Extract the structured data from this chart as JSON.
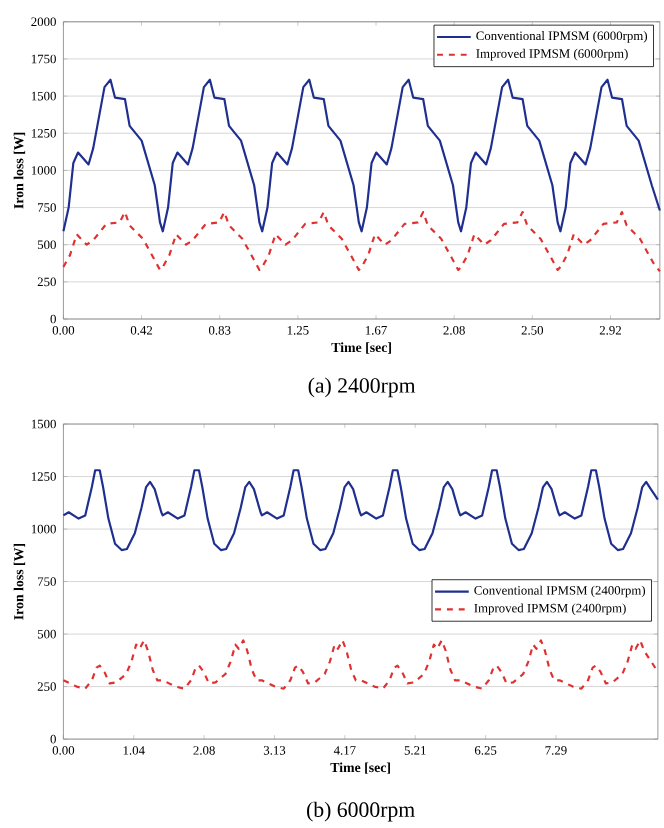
{
  "chart_data": [
    {
      "type": "line",
      "xlabel": "Time [sec]",
      "ylabel": "Iron loss  [W]",
      "annotations": [
        "(a) 2400rpm"
      ],
      "grid": "y",
      "legend": "top right",
      "xlim": [
        0,
        3.18
      ],
      "ylim": [
        0,
        2000
      ],
      "xticks": [
        {
          "value": 0,
          "label": "0.00"
        },
        {
          "value": 0.4167,
          "label": "0.42"
        },
        {
          "value": 0.8333,
          "label": "0.83"
        },
        {
          "value": 1.25,
          "label": "1.25"
        },
        {
          "value": 1.6667,
          "label": "1.67"
        },
        {
          "value": 2.0833,
          "label": "2.08"
        },
        {
          "value": 2.5,
          "label": "2.50"
        },
        {
          "value": 2.9167,
          "label": "2.92"
        }
      ],
      "yticks": [
        0,
        250,
        500,
        750,
        1000,
        1250,
        1500,
        1750,
        2000
      ],
      "series": [
        {
          "name": "Conventional IPMSM (6000rpm)",
          "color": "#1f2f8f",
          "line_style": "solid",
          "x": [
            0,
            0.028,
            0.053,
            0.078,
            0.134,
            0.159,
            0.219,
            0.251,
            0.275,
            0.328,
            0.353,
            0.417,
            0.487,
            0.515,
            0.53,
            0.558,
            0.583,
            0.608,
            0.664,
            0.689,
            0.749,
            0.781,
            0.805,
            0.858,
            0.883,
            0.947,
            1.017,
            1.045,
            1.06,
            1.088,
            1.113,
            1.138,
            1.194,
            1.219,
            1.279,
            1.311,
            1.335,
            1.388,
            1.413,
            1.477,
            1.547,
            1.575,
            1.59,
            1.618,
            1.643,
            1.668,
            1.724,
            1.749,
            1.809,
            1.841,
            1.865,
            1.918,
            1.943,
            2.007,
            2.077,
            2.105,
            2.12,
            2.148,
            2.173,
            2.198,
            2.254,
            2.279,
            2.339,
            2.371,
            2.395,
            2.448,
            2.473,
            2.537,
            2.607,
            2.635,
            2.65,
            2.678,
            2.703,
            2.728,
            2.784,
            2.809,
            2.869,
            2.901,
            2.925,
            2.978,
            3.003,
            3.067,
            3.137,
            3.18
          ],
          "values": [
            590,
            750,
            1050,
            1120,
            1040,
            1150,
            1560,
            1610,
            1490,
            1480,
            1300,
            1200,
            900,
            650,
            590,
            750,
            1050,
            1120,
            1040,
            1150,
            1560,
            1610,
            1490,
            1480,
            1300,
            1200,
            900,
            650,
            590,
            750,
            1050,
            1120,
            1040,
            1150,
            1560,
            1610,
            1490,
            1480,
            1300,
            1200,
            900,
            650,
            590,
            750,
            1050,
            1120,
            1040,
            1150,
            1560,
            1610,
            1490,
            1480,
            1300,
            1200,
            900,
            650,
            590,
            750,
            1050,
            1120,
            1040,
            1150,
            1560,
            1610,
            1490,
            1480,
            1300,
            1200,
            900,
            650,
            590,
            750,
            1050,
            1120,
            1040,
            1150,
            1560,
            1610,
            1490,
            1480,
            1300,
            1200,
            900,
            730
          ]
        },
        {
          "name": "Improved IPMSM (6000rpm)",
          "color": "#e03030",
          "line_style": "dashed",
          "x": [
            0,
            0.035,
            0.071,
            0.124,
            0.159,
            0.229,
            0.3,
            0.328,
            0.353,
            0.424,
            0.494,
            0.515,
            0.53,
            0.565,
            0.601,
            0.654,
            0.689,
            0.759,
            0.83,
            0.858,
            0.883,
            0.954,
            1.024,
            1.045,
            1.06,
            1.095,
            1.131,
            1.184,
            1.219,
            1.289,
            1.36,
            1.388,
            1.413,
            1.484,
            1.554,
            1.575,
            1.59,
            1.625,
            1.661,
            1.714,
            1.749,
            1.819,
            1.89,
            1.918,
            1.943,
            2.014,
            2.084,
            2.105,
            2.12,
            2.155,
            2.191,
            2.244,
            2.279,
            2.349,
            2.42,
            2.448,
            2.473,
            2.544,
            2.614,
            2.635,
            2.65,
            2.685,
            2.721,
            2.774,
            2.809,
            2.879,
            2.95,
            2.978,
            3.003,
            3.074,
            3.144,
            3.18
          ],
          "values": [
            350,
            430,
            570,
            500,
            530,
            640,
            650,
            720,
            630,
            540,
            380,
            330,
            350,
            430,
            570,
            500,
            530,
            640,
            650,
            720,
            630,
            540,
            380,
            330,
            350,
            430,
            570,
            500,
            530,
            640,
            650,
            720,
            630,
            540,
            380,
            330,
            350,
            430,
            570,
            500,
            530,
            640,
            650,
            720,
            630,
            540,
            380,
            330,
            350,
            430,
            570,
            500,
            530,
            640,
            650,
            720,
            630,
            540,
            380,
            330,
            350,
            430,
            570,
            500,
            530,
            640,
            650,
            720,
            630,
            540,
            380,
            320
          ]
        }
      ]
    },
    {
      "type": "line",
      "xlabel": "Time [sec]",
      "ylabel": "Iron loss  [W]",
      "annotations": [
        "(b) 6000rpm"
      ],
      "grid": "y",
      "legend": "right",
      "xlim": [
        0,
        8.8
      ],
      "ylim": [
        0,
        1500
      ],
      "xticks": [
        {
          "value": 0,
          "label": "0.00"
        },
        {
          "value": 1.0417,
          "label": "1.04"
        },
        {
          "value": 2.0833,
          "label": "2.08"
        },
        {
          "value": 3.125,
          "label": "3.13"
        },
        {
          "value": 4.1667,
          "label": "4.17"
        },
        {
          "value": 5.2083,
          "label": "5.21"
        },
        {
          "value": 6.25,
          "label": "6.25"
        },
        {
          "value": 7.2917,
          "label": "7.29"
        }
      ],
      "yticks": [
        0,
        250,
        500,
        750,
        1000,
        1250,
        1500
      ],
      "series": [
        {
          "name": "Conventional IPMSM (2400rpm)",
          "color": "#1f2f8f",
          "line_style": "solid",
          "x": [
            0,
            0.078,
            0.225,
            0.323,
            0.421,
            0.47,
            0.538,
            0.587,
            0.666,
            0.764,
            0.862,
            0.94,
            1.057,
            1.155,
            1.224,
            1.282,
            1.351,
            1.449,
            1.469,
            1.547,
            1.694,
            1.792,
            1.89,
            1.939,
            2.007,
            2.056,
            2.135,
            2.233,
            2.331,
            2.409,
            2.526,
            2.624,
            2.693,
            2.751,
            2.82,
            2.918,
            2.938,
            3.016,
            3.163,
            3.261,
            3.359,
            3.408,
            3.476,
            3.525,
            3.604,
            3.702,
            3.8,
            3.878,
            3.995,
            4.093,
            4.162,
            4.22,
            4.289,
            4.387,
            4.407,
            4.485,
            4.632,
            4.73,
            4.828,
            4.877,
            4.945,
            4.994,
            5.073,
            5.171,
            5.269,
            5.347,
            5.464,
            5.562,
            5.631,
            5.689,
            5.758,
            5.856,
            5.876,
            5.954,
            6.101,
            6.199,
            6.297,
            6.346,
            6.414,
            6.463,
            6.542,
            6.64,
            6.738,
            6.816,
            6.933,
            7.031,
            7.1,
            7.158,
            7.227,
            7.325,
            7.345,
            7.423,
            7.57,
            7.668,
            7.766,
            7.815,
            7.883,
            7.932,
            8.011,
            8.109,
            8.207,
            8.285,
            8.402,
            8.5,
            8.569,
            8.627,
            8.696,
            8.8
          ],
          "values": [
            1065,
            1080,
            1050,
            1065,
            1200,
            1280,
            1280,
            1200,
            1050,
            930,
            900,
            905,
            980,
            1100,
            1200,
            1225,
            1190,
            1080,
            1065,
            1080,
            1050,
            1065,
            1200,
            1280,
            1280,
            1200,
            1050,
            930,
            900,
            905,
            980,
            1100,
            1200,
            1225,
            1190,
            1080,
            1065,
            1080,
            1050,
            1065,
            1200,
            1280,
            1280,
            1200,
            1050,
            930,
            900,
            905,
            980,
            1100,
            1200,
            1225,
            1190,
            1080,
            1065,
            1080,
            1050,
            1065,
            1200,
            1280,
            1280,
            1200,
            1050,
            930,
            900,
            905,
            980,
            1100,
            1200,
            1225,
            1190,
            1080,
            1065,
            1080,
            1050,
            1065,
            1200,
            1280,
            1280,
            1200,
            1050,
            930,
            900,
            905,
            980,
            1100,
            1200,
            1225,
            1190,
            1080,
            1065,
            1080,
            1050,
            1065,
            1200,
            1280,
            1280,
            1200,
            1050,
            930,
            900,
            905,
            980,
            1100,
            1200,
            1225,
            1190,
            1140
          ]
        },
        {
          "name": "Improved IPMSM (2400rpm)",
          "color": "#e03030",
          "line_style": "dashed",
          "x": [
            0,
            0.196,
            0.323,
            0.421,
            0.49,
            0.538,
            0.607,
            0.685,
            0.783,
            0.93,
            1.008,
            1.077,
            1.126,
            1.194,
            1.253,
            1.322,
            1.39,
            1.469,
            1.665,
            1.792,
            1.89,
            1.959,
            2.007,
            2.076,
            2.154,
            2.252,
            2.399,
            2.477,
            2.546,
            2.595,
            2.663,
            2.722,
            2.791,
            2.859,
            2.938,
            3.134,
            3.261,
            3.359,
            3.428,
            3.476,
            3.545,
            3.623,
            3.721,
            3.868,
            3.946,
            4.015,
            4.064,
            4.132,
            4.191,
            4.26,
            4.328,
            4.407,
            4.603,
            4.73,
            4.828,
            4.897,
            4.945,
            5.014,
            5.092,
            5.19,
            5.337,
            5.415,
            5.484,
            5.533,
            5.601,
            5.66,
            5.729,
            5.797,
            5.876,
            6.072,
            6.199,
            6.297,
            6.366,
            6.414,
            6.483,
            6.561,
            6.659,
            6.806,
            6.884,
            6.953,
            7.002,
            7.07,
            7.129,
            7.198,
            7.266,
            7.345,
            7.541,
            7.668,
            7.766,
            7.835,
            7.883,
            7.952,
            8.03,
            8.128,
            8.275,
            8.353,
            8.422,
            8.471,
            8.539,
            8.598,
            8.8
          ],
          "values": [
            280,
            250,
            240,
            280,
            340,
            350,
            320,
            265,
            270,
            310,
            370,
            450,
            430,
            470,
            420,
            330,
            280,
            280,
            250,
            240,
            280,
            340,
            350,
            320,
            265,
            270,
            310,
            370,
            450,
            430,
            470,
            420,
            330,
            280,
            280,
            250,
            240,
            280,
            340,
            350,
            320,
            265,
            270,
            310,
            370,
            450,
            430,
            470,
            420,
            330,
            280,
            280,
            250,
            240,
            280,
            340,
            350,
            320,
            265,
            270,
            310,
            370,
            450,
            430,
            470,
            420,
            330,
            280,
            280,
            250,
            240,
            280,
            340,
            350,
            320,
            265,
            270,
            310,
            370,
            450,
            430,
            470,
            420,
            330,
            280,
            280,
            250,
            240,
            280,
            340,
            350,
            320,
            265,
            270,
            310,
            370,
            450,
            430,
            470,
            420,
            320
          ]
        }
      ]
    }
  ]
}
